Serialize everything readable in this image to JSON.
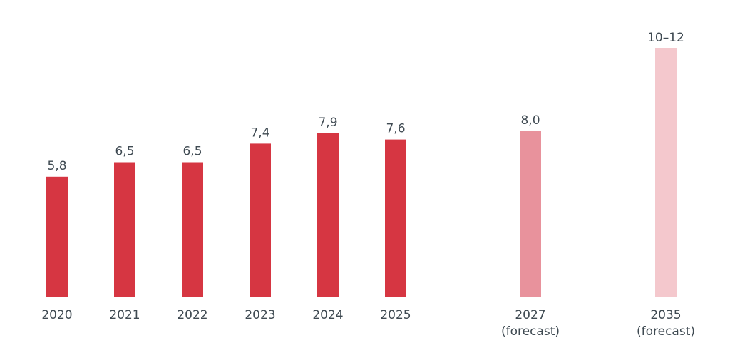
{
  "chart_data": {
    "type": "bar",
    "categories": [
      "2020",
      "2021",
      "2022",
      "2023",
      "2024",
      "2025",
      "2027 (forecast)",
      "2035 (forecast)"
    ],
    "category_lines": [
      [
        "2020"
      ],
      [
        "2021"
      ],
      [
        "2022"
      ],
      [
        "2023"
      ],
      [
        "2024"
      ],
      [
        "2025"
      ],
      [
        "2027",
        "(forecast)"
      ],
      [
        "2035",
        "(forecast)"
      ]
    ],
    "values": [
      5.8,
      6.5,
      6.5,
      7.4,
      7.9,
      7.6,
      8.0,
      12
    ],
    "value_labels": [
      "5,8",
      "6,5",
      "6,5",
      "7,4",
      "7,9",
      "7,6",
      "8,0",
      "10–12"
    ],
    "bar_colors": [
      "#d63642",
      "#d63642",
      "#d63642",
      "#d63642",
      "#d63642",
      "#d63642",
      "#e8929c",
      "#f4c8cd"
    ],
    "title": "",
    "xlabel": "",
    "ylabel": "",
    "ylim": [
      0,
      12
    ],
    "grid": false,
    "axis_line_color": "#d8d8d8"
  }
}
